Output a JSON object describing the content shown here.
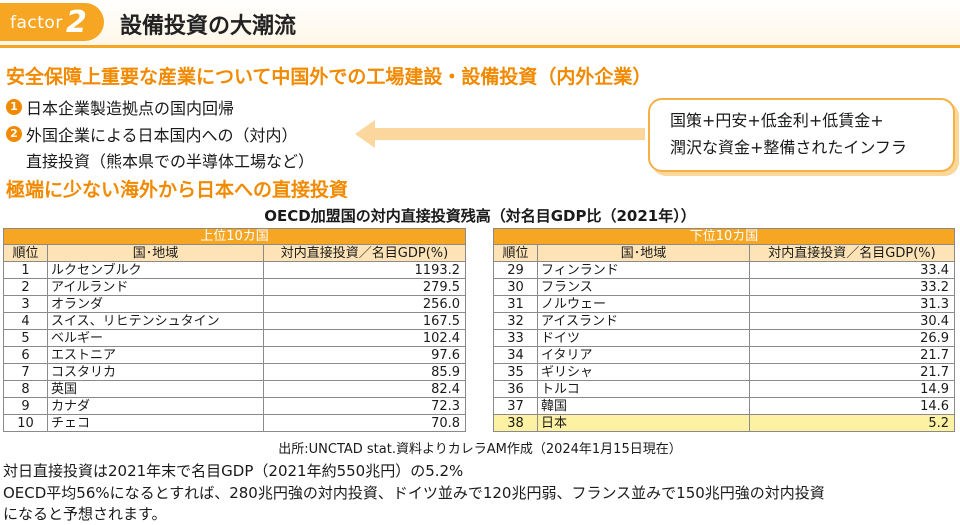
{
  "header": {
    "factor_word": "factor",
    "factor_number": "2",
    "title": "設備投資の大潮流"
  },
  "section1": {
    "heading": "安全保障上重要な産業について中国外での工場建設・設備投資（内外企業）",
    "items": [
      {
        "number": "1",
        "text": "日本企業製造拠点の国内回帰"
      },
      {
        "number": "2",
        "text": "外国企業による日本国内への（対内）",
        "text2": "直接投資（熊本県での半導体工場など）"
      }
    ],
    "box_lines": [
      "国策+円安+低金利+低賃金+",
      "潤沢な資金+整備されたインフラ"
    ]
  },
  "section2": {
    "heading": "極端に少ない海外から日本への直接投資"
  },
  "table_title": "OECD加盟国の対内直接投資残高（対名目GDP比（2021年））",
  "tables": {
    "headers": {
      "rank": "順位",
      "country": "国･地域",
      "value": "対内直接投資／名目GDP(%)"
    },
    "top": {
      "caption": "上位10カ国",
      "rows": [
        {
          "rank": "1",
          "country": "ルクセンブルク",
          "value": "1193.2"
        },
        {
          "rank": "2",
          "country": "アイルランド",
          "value": "279.5"
        },
        {
          "rank": "3",
          "country": "オランダ",
          "value": "256.0"
        },
        {
          "rank": "4",
          "country": "スイス、リヒテンシュタイン",
          "value": "167.5"
        },
        {
          "rank": "5",
          "country": "ベルギー",
          "value": "102.4"
        },
        {
          "rank": "6",
          "country": "エストニア",
          "value": "97.6"
        },
        {
          "rank": "7",
          "country": "コスタリカ",
          "value": "85.9"
        },
        {
          "rank": "8",
          "country": "英国",
          "value": "82.4"
        },
        {
          "rank": "9",
          "country": "カナダ",
          "value": "72.3"
        },
        {
          "rank": "10",
          "country": "チェコ",
          "value": "70.8"
        }
      ]
    },
    "bottom": {
      "caption": "下位10カ国",
      "rows": [
        {
          "rank": "29",
          "country": "フィンランド",
          "value": "33.4"
        },
        {
          "rank": "30",
          "country": "フランス",
          "value": "33.2"
        },
        {
          "rank": "31",
          "country": "ノルウェー",
          "value": "31.3"
        },
        {
          "rank": "32",
          "country": "アイスランド",
          "value": "30.4"
        },
        {
          "rank": "33",
          "country": "ドイツ",
          "value": "26.9"
        },
        {
          "rank": "34",
          "country": "イタリア",
          "value": "21.7"
        },
        {
          "rank": "35",
          "country": "ギリシャ",
          "value": "21.7"
        },
        {
          "rank": "36",
          "country": "トルコ",
          "value": "14.9"
        },
        {
          "rank": "37",
          "country": "韓国",
          "value": "14.6"
        },
        {
          "rank": "38",
          "country": "日本",
          "value": "5.2"
        }
      ]
    },
    "highlight_color": "#fdf2a4"
  },
  "source": "出所:UNCTAD stat.資料よりカレラAM作成（2024年1月15日現在）",
  "notes": [
    "対日直接投資は2021年末で名目GDP（2021年約550兆円）の5.2%",
    "OECD平均56%になるとすれば、280兆円強の対内投資、ドイツ並みで120兆円弱、フランス並みで150兆円強の対内投資",
    "になると予想されます。"
  ],
  "colors": {
    "accent": "#f18a00",
    "header_orange": "#f6a623",
    "table_header": "#fde3b5"
  }
}
